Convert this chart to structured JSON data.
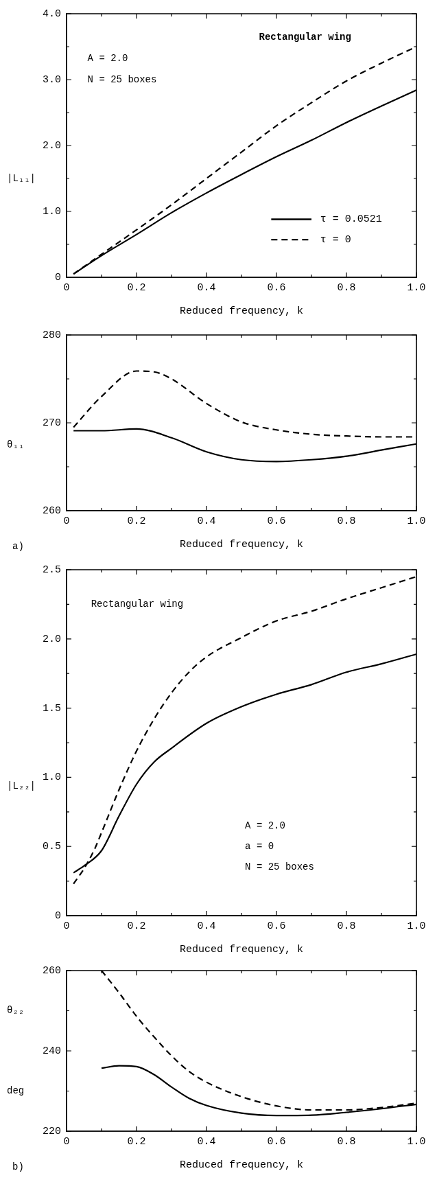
{
  "chart_data": [
    {
      "type": "line",
      "xlabel": "Reduced frequency, k",
      "ylabel": "|L₁₁|",
      "annotations": [
        "Rectangular wing",
        "A = 2.0",
        "N = 25 boxes"
      ],
      "xlim": [
        0,
        1
      ],
      "ylim": [
        0,
        4
      ],
      "xticks": [
        0,
        {
          "value": 0.1,
          "label": null
        },
        0.2,
        {
          "value": 0.3,
          "label": null
        },
        0.4,
        {
          "value": 0.5,
          "label": null
        },
        0.6,
        {
          "value": 0.7,
          "label": null
        },
        0.8,
        {
          "value": 0.9,
          "label": null
        },
        {
          "value": 1,
          "label": "1.0"
        }
      ],
      "yticks": [
        0,
        {
          "value": 0.5,
          "label": null
        },
        {
          "value": 1,
          "label": "1.0"
        },
        {
          "value": 1.5,
          "label": null
        },
        {
          "value": 2,
          "label": "2.0"
        },
        {
          "value": 2.5,
          "label": null
        },
        {
          "value": 3,
          "label": "3.0"
        },
        {
          "value": 3.5,
          "label": null
        },
        {
          "value": 4,
          "label": "4.0"
        }
      ],
      "grid": false,
      "legend": "bottom right",
      "marker": "none",
      "series": [
        {
          "name": "τ = 0.0521",
          "color": "#000000",
          "line_style": "solid",
          "x": [
            0.02,
            0.1,
            0.2,
            0.3,
            0.4,
            0.5,
            0.6,
            0.7,
            0.8,
            0.9,
            1.0
          ],
          "values": [
            0.05,
            0.33,
            0.65,
            0.98,
            1.28,
            1.56,
            1.83,
            2.08,
            2.35,
            2.6,
            2.84
          ]
        },
        {
          "name": "τ = 0",
          "color": "#000000",
          "line_style": "dashed",
          "x": [
            0.02,
            0.1,
            0.2,
            0.3,
            0.4,
            0.5,
            0.6,
            0.7,
            0.8,
            0.9,
            1.0
          ],
          "values": [
            0.05,
            0.35,
            0.72,
            1.1,
            1.5,
            1.9,
            2.3,
            2.65,
            2.98,
            3.25,
            3.5
          ]
        }
      ]
    },
    {
      "type": "line",
      "xlabel": "Reduced frequency, k",
      "ylabel": "θ₁₁",
      "annotations": [
        "a)"
      ],
      "xlim": [
        0,
        1
      ],
      "ylim": [
        260,
        280
      ],
      "xticks": [
        0,
        {
          "value": 0.1,
          "label": null
        },
        0.2,
        {
          "value": 0.3,
          "label": null
        },
        0.4,
        {
          "value": 0.5,
          "label": null
        },
        0.6,
        {
          "value": 0.7,
          "label": null
        },
        0.8,
        {
          "value": 0.9,
          "label": null
        },
        {
          "value": 1,
          "label": "1.0"
        }
      ],
      "yticks": [
        260,
        {
          "value": 265,
          "label": null
        },
        270,
        {
          "value": 275,
          "label": null
        },
        280
      ],
      "grid": false,
      "legend": false,
      "marker": "none",
      "series": [
        {
          "color": "#000000",
          "line_style": "solid",
          "x": [
            0.02,
            0.1,
            0.2,
            0.3,
            0.4,
            0.5,
            0.6,
            0.7,
            0.8,
            0.9,
            1.0
          ],
          "values": [
            269.1,
            269.1,
            269.3,
            268.3,
            266.7,
            265.8,
            265.6,
            265.8,
            266.2,
            266.9,
            267.6
          ]
        },
        {
          "color": "#000000",
          "line_style": "dashed",
          "x": [
            0.02,
            0.1,
            0.2,
            0.25,
            0.3,
            0.4,
            0.5,
            0.6,
            0.7,
            0.8,
            0.9,
            1.0
          ],
          "values": [
            269.5,
            273,
            275.9,
            275.8,
            275,
            272.2,
            270.1,
            269.2,
            268.7,
            268.5,
            268.4,
            268.4
          ]
        }
      ]
    },
    {
      "type": "line",
      "xlabel": "Reduced frequency, k",
      "ylabel": "|L₂₂|",
      "annotations": [
        "Rectangular wing",
        "A = 2.0",
        "a = 0",
        "N = 25 boxes"
      ],
      "xlim": [
        0,
        1
      ],
      "ylim": [
        0,
        2.5
      ],
      "xticks": [
        0,
        {
          "value": 0.1,
          "label": null
        },
        0.2,
        {
          "value": 0.3,
          "label": null
        },
        0.4,
        {
          "value": 0.5,
          "label": null
        },
        0.6,
        {
          "value": 0.7,
          "label": null
        },
        0.8,
        {
          "value": 0.9,
          "label": null
        },
        {
          "value": 1,
          "label": "1.0"
        }
      ],
      "yticks": [
        0,
        {
          "value": 0.25,
          "label": null
        },
        0.5,
        {
          "value": 0.75,
          "label": null
        },
        {
          "value": 1,
          "label": "1.0"
        },
        {
          "value": 1.25,
          "label": null
        },
        1.5,
        {
          "value": 1.75,
          "label": null
        },
        {
          "value": 2,
          "label": "2.0"
        },
        {
          "value": 2.25,
          "label": null
        },
        2.5
      ],
      "grid": false,
      "legend": false,
      "marker": "none",
      "series": [
        {
          "color": "#000000",
          "line_style": "solid",
          "x": [
            0.02,
            0.05,
            0.1,
            0.15,
            0.2,
            0.25,
            0.3,
            0.4,
            0.5,
            0.6,
            0.7,
            0.8,
            0.9,
            1.0
          ],
          "values": [
            0.31,
            0.36,
            0.47,
            0.72,
            0.95,
            1.11,
            1.21,
            1.39,
            1.51,
            1.6,
            1.67,
            1.76,
            1.82,
            1.89
          ]
        },
        {
          "color": "#000000",
          "line_style": "dashed",
          "x": [
            0.02,
            0.05,
            0.08,
            0.1,
            0.15,
            0.2,
            0.25,
            0.3,
            0.35,
            0.4,
            0.5,
            0.6,
            0.7,
            0.8,
            0.9,
            1.0
          ],
          "values": [
            0.23,
            0.34,
            0.48,
            0.6,
            0.91,
            1.19,
            1.42,
            1.61,
            1.76,
            1.87,
            2.01,
            2.13,
            2.2,
            2.29,
            2.37,
            2.45
          ]
        }
      ]
    },
    {
      "type": "line",
      "xlabel": "Reduced frequency, k",
      "ylabel": "θ₂₂\ndeg",
      "annotations": [
        "b)"
      ],
      "xlim": [
        0,
        1
      ],
      "ylim": [
        220,
        260
      ],
      "xticks": [
        0,
        {
          "value": 0.1,
          "label": null
        },
        0.2,
        {
          "value": 0.3,
          "label": null
        },
        0.4,
        {
          "value": 0.5,
          "label": null
        },
        0.6,
        {
          "value": 0.7,
          "label": null
        },
        0.8,
        {
          "value": 0.9,
          "label": null
        },
        {
          "value": 1,
          "label": "1.0"
        }
      ],
      "yticks": [
        220,
        {
          "value": 230,
          "label": null
        },
        240,
        {
          "value": 250,
          "label": null
        },
        260
      ],
      "grid": false,
      "legend": false,
      "marker": "none",
      "series": [
        {
          "color": "#000000",
          "line_style": "solid",
          "x": [
            0.1,
            0.15,
            0.2,
            0.25,
            0.3,
            0.35,
            0.4,
            0.5,
            0.6,
            0.7,
            0.8,
            0.9,
            1.0
          ],
          "values": [
            235.7,
            236.3,
            236.1,
            234.1,
            231,
            228.2,
            226.4,
            224.5,
            223.9,
            224,
            224.7,
            225.6,
            226.7
          ]
        },
        {
          "color": "#000000",
          "line_style": "dashed",
          "x": [
            0.1,
            0.15,
            0.2,
            0.25,
            0.3,
            0.35,
            0.4,
            0.5,
            0.6,
            0.7,
            0.8,
            0.9,
            1.0
          ],
          "values": [
            260,
            254.5,
            248.6,
            243.5,
            238.8,
            234.9,
            232.2,
            228.6,
            226.3,
            225.3,
            225.3,
            225.9,
            227
          ]
        }
      ]
    }
  ]
}
